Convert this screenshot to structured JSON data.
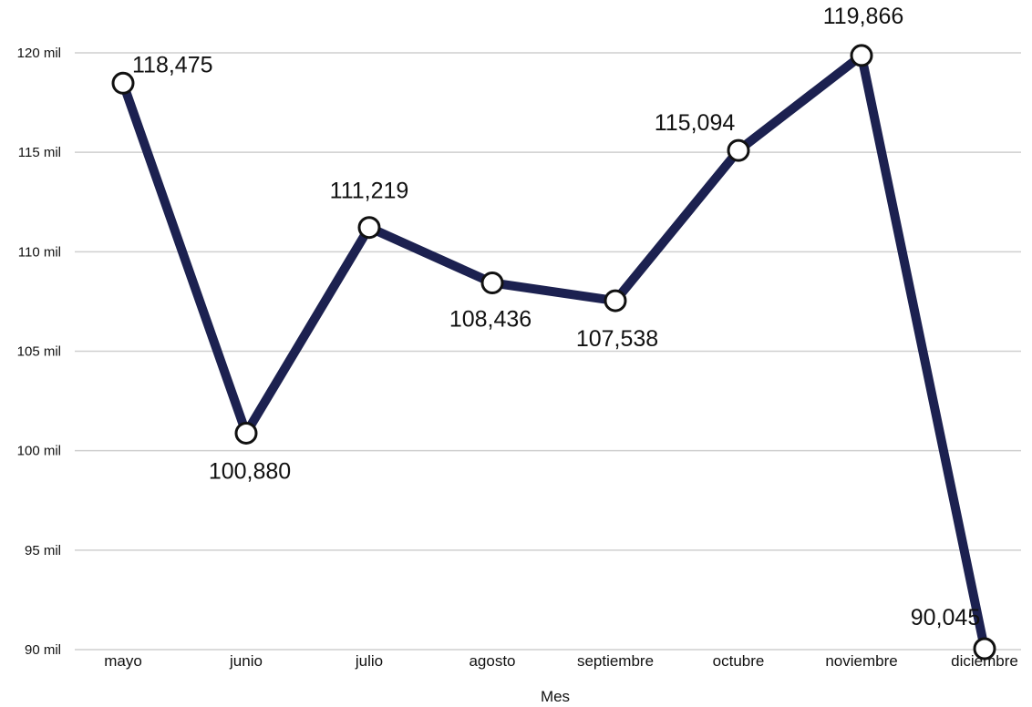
{
  "chart_data": {
    "type": "line",
    "xlabel": "Mes",
    "ylabel": "",
    "categories": [
      "mayo",
      "junio",
      "julio",
      "agosto",
      "septiembre",
      "octubre",
      "noviembre",
      "diciembre"
    ],
    "series": [
      {
        "values": [
          118475,
          100880,
          111219,
          108436,
          107538,
          115094,
          119866,
          90045
        ],
        "labels": [
          "118,475",
          "100,880",
          "111,219",
          "108,436",
          "107,538",
          "115,094",
          "119,866",
          "90,045"
        ],
        "color": "#1c2150"
      }
    ],
    "ylim": [
      90000,
      120000
    ],
    "yticks": [
      90000,
      95000,
      100000,
      105000,
      110000,
      115000,
      120000
    ],
    "ytick_labels": [
      "90 mil",
      "95 mil",
      "100 mil",
      "105 mil",
      "110 mil",
      "115 mil",
      "120 mil"
    ],
    "grid": true,
    "legend": "none"
  }
}
